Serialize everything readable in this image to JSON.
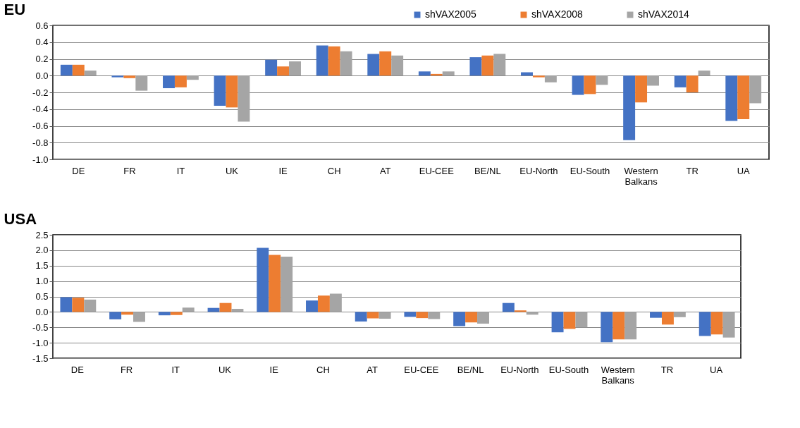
{
  "chart_data": [
    {
      "type": "bar",
      "title": "EU",
      "categories": [
        "DE",
        "FR",
        "IT",
        "UK",
        "IE",
        "CH",
        "AT",
        "EU-CEE",
        "BE/NL",
        "EU-North",
        "EU-South",
        "Western Balkans",
        "TR",
        "UA"
      ],
      "series": [
        {
          "name": "shVAX2005",
          "color": "#4472c4",
          "values": [
            0.13,
            -0.02,
            -0.15,
            -0.36,
            0.19,
            0.36,
            0.26,
            0.05,
            0.22,
            0.04,
            -0.23,
            -0.77,
            -0.14,
            -0.54
          ]
        },
        {
          "name": "shVAX2008",
          "color": "#ed7d31",
          "values": [
            0.13,
            -0.03,
            -0.14,
            -0.38,
            0.11,
            0.35,
            0.29,
            0.02,
            0.24,
            -0.02,
            -0.22,
            -0.32,
            -0.2,
            -0.52
          ]
        },
        {
          "name": "shVAX2014",
          "color": "#a5a5a5",
          "values": [
            0.06,
            -0.18,
            -0.05,
            -0.55,
            0.17,
            0.29,
            0.24,
            0.05,
            0.26,
            -0.08,
            -0.11,
            -0.12,
            0.06,
            -0.33
          ]
        }
      ],
      "ylim": [
        -1.0,
        0.6
      ],
      "yticks": [
        {
          "value": -1,
          "label": "-1.0"
        },
        {
          "value": -0.8,
          "label": "-0.8"
        },
        {
          "value": -0.6,
          "label": "-0.6"
        },
        {
          "value": -0.4,
          "label": "-0.4"
        },
        {
          "value": -0.2,
          "label": "-0.2"
        },
        {
          "value": 0,
          "label": "0.0"
        },
        {
          "value": 0.2,
          "label": "0.2"
        },
        {
          "value": 0.4,
          "label": "0.4"
        },
        {
          "value": 0.6,
          "label": "0.6"
        }
      ],
      "grid": "y",
      "legend": "top right"
    },
    {
      "type": "bar",
      "title": "USA",
      "categories": [
        "DE",
        "FR",
        "IT",
        "UK",
        "IE",
        "CH",
        "AT",
        "EU-CEE",
        "BE/NL",
        "EU-North",
        "EU-South",
        "Western Balkans",
        "TR",
        "UA"
      ],
      "series": [
        {
          "name": "shVAX2005",
          "color": "#4472c4",
          "values": [
            0.48,
            -0.24,
            -0.11,
            0.13,
            2.08,
            0.37,
            -0.31,
            -0.16,
            -0.46,
            0.29,
            -0.66,
            -0.98,
            -0.19,
            -0.78
          ]
        },
        {
          "name": "shVAX2008",
          "color": "#ed7d31",
          "values": [
            0.46,
            -0.09,
            -0.1,
            0.29,
            1.85,
            0.53,
            -0.21,
            -0.2,
            -0.34,
            0.05,
            -0.55,
            -0.89,
            -0.41,
            -0.73
          ]
        },
        {
          "name": "shVAX2014",
          "color": "#a5a5a5",
          "values": [
            0.4,
            -0.32,
            0.14,
            0.1,
            1.79,
            0.59,
            -0.22,
            -0.23,
            -0.38,
            -0.09,
            -0.5,
            -0.89,
            -0.17,
            -0.83
          ]
        }
      ],
      "ylim": [
        -1.5,
        2.5
      ],
      "yticks": [
        {
          "value": -1.5,
          "label": "-1.5"
        },
        {
          "value": -1,
          "label": "-1.0"
        },
        {
          "value": -0.5,
          "label": "-0.5"
        },
        {
          "value": 0,
          "label": "0.0"
        },
        {
          "value": 0.5,
          "label": "0.5"
        },
        {
          "value": 1,
          "label": "1.0"
        },
        {
          "value": 1.5,
          "label": "1.5"
        },
        {
          "value": 2,
          "label": "2.0"
        },
        {
          "value": 2.5,
          "label": "2.5"
        }
      ],
      "grid": "y",
      "legend": "top right"
    }
  ]
}
